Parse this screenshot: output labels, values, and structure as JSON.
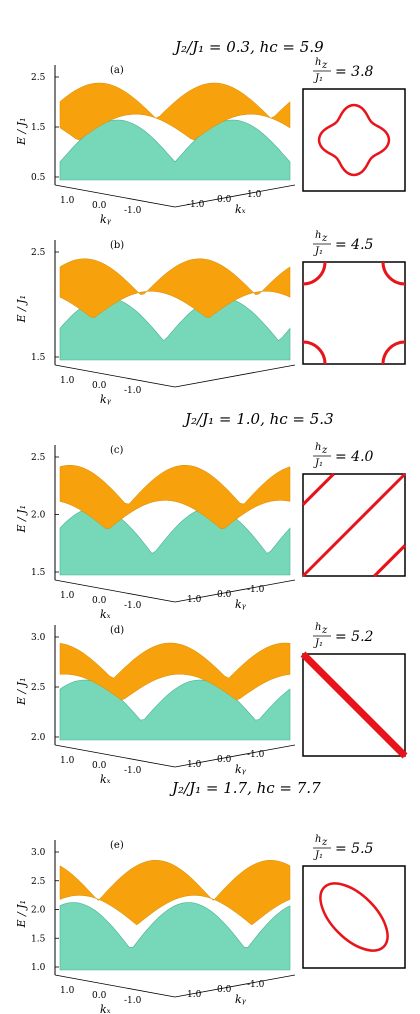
{
  "headers": [
    {
      "text": "J₂/J₁ = 0.3,  hᴄ = 5.9"
    },
    {
      "text": "J₂/J₁ = 1.0,  hᴄ = 5.3"
    },
    {
      "text": "J₂/J₁ = 1.7,  hᴄ = 7.7"
    }
  ],
  "ylabel": "E / J₁",
  "inset_frac": {
    "num": "h_z",
    "den": "J₁"
  },
  "panels": [
    {
      "label": "(a)",
      "yticks": [
        "2.5",
        "1.5",
        "0.5"
      ],
      "xlab1": "k_y",
      "xlab2": "k_x",
      "ticks1": [
        "1.0",
        "0.0",
        "-1.0"
      ],
      "ticks2": [
        "-1.0",
        "0.0",
        "1.0"
      ],
      "hz": "= 3.8",
      "contour": "closed_rounded_square"
    },
    {
      "label": "(b)",
      "yticks": [
        "2.5",
        "1.5"
      ],
      "xlab1": "k_y",
      "xlab2": "",
      "ticks1": [
        "1.0",
        "0.0",
        "-1.0"
      ],
      "ticks2": [],
      "hz": "= 4.5",
      "contour": "corner_arcs"
    },
    {
      "label": "(c)",
      "yticks": [
        "2.5",
        "2.0",
        "1.5"
      ],
      "xlab1": "k_x",
      "xlab2": "k_y",
      "ticks1": [
        "1.0",
        "0.0",
        "-1.0"
      ],
      "ticks2": [
        "1.0",
        "0.0",
        "-1.0"
      ],
      "hz": "= 4.0",
      "contour": "diagonal_lines"
    },
    {
      "label": "(d)",
      "yticks": [
        "3.0",
        "2.5",
        "2.0"
      ],
      "xlab1": "k_x",
      "xlab2": "k_y",
      "ticks1": [
        "1.0",
        "0.0",
        "-1.0"
      ],
      "ticks2": [
        "1.0",
        "0.0",
        "-1.0"
      ],
      "hz": "= 5.2",
      "contour": "single_diagonal"
    },
    {
      "label": "(e)",
      "yticks": [
        "3.0",
        "2.5",
        "2.0",
        "1.5",
        "1.0"
      ],
      "xlab1": "k_x",
      "xlab2": "k_y",
      "ticks1": [
        "1.0",
        "0.0",
        "-1.0"
      ],
      "ticks2": [
        "1.0",
        "0.0",
        "-1.0"
      ],
      "hz": "= 5.5",
      "contour": "tilted_ellipse"
    }
  ],
  "colors": {
    "upper": "#f7a20c",
    "lower": "#6fd6b6",
    "lower_dark": "#3fae8f",
    "contour": "#e8141b"
  }
}
